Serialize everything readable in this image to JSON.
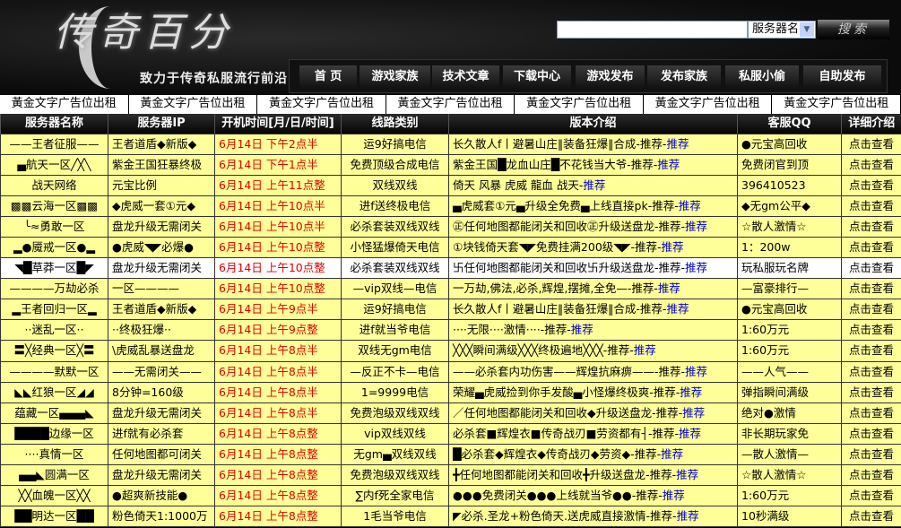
{
  "header": {
    "logo_text": "传奇百分",
    "slogan": "致力于传奇私服流行前沿"
  },
  "search": {
    "value": "",
    "select": "服务器名",
    "button": "搜索"
  },
  "nav": [
    "首 页",
    "游戏家族",
    "技术文章",
    "下载中心",
    "游戏发布",
    "发布家族",
    "私服小偷",
    "自助发布"
  ],
  "ads": [
    "黃金文字广告位出租",
    "黃金文字广告位出租",
    "黃金文字广告位出租",
    "黃金文字广告位出租",
    "黃金文字广告位出租",
    "黃金文字广告位出租",
    "黃金文字广告位出租"
  ],
  "table": {
    "headers": [
      "服务器名称",
      "服务器IP",
      "开机时间[月/日/时间]",
      "线路类别",
      "版本介绍",
      "客服QQ",
      "详细介绍"
    ],
    "recommend": "推荐",
    "rows": [
      {
        "name": "——王者征服——",
        "ip": "王者道盾◆新版◆",
        "time": "6月14日  下午2点半",
        "line": "运9好搞电信",
        "version": "长久散人f丨避暑山庄‖装备狂爆‖合成-推荐-",
        "qq": "●元宝高回收",
        "detail": "点击查看"
      },
      {
        "name": "▄航天一区╱╳╲",
        "ip": "紫金王国狂暴终极",
        "time": "6月14日  下午1点半",
        "line": "免费顶级合成电信",
        "version": "紫金王国█龙血山庄█不花钱当大爷-推荐-",
        "qq": "免费闭官到顶",
        "detail": "点击查看"
      },
      {
        "name": "战天网络",
        "ip": "元宝比例",
        "time": "6月14日  上午11点整",
        "line": "双线双线",
        "version": "倚天 风暴 虎威 龍血 战天-",
        "qq": "396410523",
        "detail": "点击查看"
      },
      {
        "name": "▩▩云海一区▩▩",
        "ip": "◆虎威一套①元◆",
        "time": "6月14日  上午10点半",
        "line": "进f送终极电信",
        "version": "▄虎威套①元▄升级全免费▄上线直接pk-推荐-",
        "qq": "◆无gm公平◆",
        "detail": "点击查看"
      },
      {
        "name": "╰≈勇敢一区",
        "ip": "盘龙升级无需闭关",
        "time": "6月14日  上午10点半",
        "line": "必杀套装双线双线",
        "version": "㊣任何地图都能闭关和回收㊣升级送盘龙-推荐-",
        "qq": "☆散人激情☆",
        "detail": "点击查看"
      },
      {
        "name": "▂●魇戒一区●▂",
        "ip": "●虎威◥◤必爆●",
        "time": "6月14日  上午10点整",
        "line": "小怪猛爆倚天电信",
        "version": "①块钱倚天套◥◤免费挂满200级◥◤-推荐-",
        "qq": "1：200w",
        "detail": "点击查看"
      },
      {
        "name": "◥█草莽一区█◤",
        "ip": "盘龙升级无需闭关",
        "time": "6月14日  上午10点整",
        "line": "必杀套装双线双线",
        "version": "卐任何地图都能闭关和回收卐升级送盘龙-推荐-",
        "qq": "玩私服玩名牌",
        "detail": "点击查看",
        "white": true
      },
      {
        "name": "————万劫必杀",
        "ip": "一区————",
        "time": "6月14日  上午10点整",
        "line": "—vip双线—电信",
        "version": "一万劫,佛法,必杀,辉煌,摆摊,全免—-推荐-",
        "qq": "—富豪排行—",
        "detail": "点击查看"
      },
      {
        "name": "▂王者回归一区▂",
        "ip": "王者道盾◆新版◆",
        "time": "6月14日  上午9点半",
        "line": "运9好搞电信",
        "version": "长久散人f丨避暑山庄‖装备狂爆‖合成-推荐-",
        "qq": "●元宝高回收",
        "detail": "点击查看"
      },
      {
        "name": "··迷乱一区··",
        "ip": "··终极狂爆··",
        "time": "6月14日  上午9点整",
        "line": "进f就当爷电信",
        "version": "····无限····激情····-推荐-",
        "qq": "1:60万元",
        "detail": "点击查看"
      },
      {
        "name": "〓╳经典一区╳〓",
        "ip": "\\虎威乱暴送盘龙",
        "time": "6月14日  上午8点半",
        "line": "双线无gm电信",
        "version": "╳╳╳瞬间满级╳╳╳终极遍地╳╳╳-推荐-",
        "qq": "1:60万元",
        "detail": "点击查看"
      },
      {
        "name": "————默默一区",
        "ip": "——无需闭关——",
        "time": "6月14日  上午8点半",
        "line": "—反正不卡—电信",
        "version": "——必杀套内功伤害——辉煌抗麻痹——-推荐-",
        "qq": "——人气——",
        "detail": "点击查看"
      },
      {
        "name": "◣◣红狼一区◢◢",
        "ip": "8分钟=160级",
        "time": "6月14日  上午8点半",
        "line": "1=9999电信",
        "version": "荣耀▄虎威捡到你手发酸▄小怪爆终极爽-推荐-",
        "qq": "弹指瞬间满级",
        "detail": "点击查看"
      },
      {
        "name": "蕴藏一区▄▄▄◣",
        "ip": "盘龙升级无需闭关",
        "time": "6月14日  上午8点半",
        "line": "免费泡级双线双线",
        "version": "／任何地图都能闭关和回收◆升级送盘龙-推荐-",
        "qq": "绝对●激情",
        "detail": "点击查看"
      },
      {
        "name": "████边缘一区",
        "ip": "进f就有必杀套",
        "time": "6月14日  上午8点整",
        "line": "vip双线双线",
        "version": "必杀套■辉煌衣■传奇战刃■劳资都有┤-推荐-",
        "qq": "非长期玩家免",
        "detail": "点击查看"
      },
      {
        "name": "····真情一区",
        "ip": "任何地图都可闭关",
        "time": "6月14日  上午8点整",
        "line": "无gm▄双线双线",
        "version": "█必杀套◆辉煌衣◆传奇战刃◆劳资◆-推荐-",
        "qq": "—散人激情—",
        "detail": "点击查看"
      },
      {
        "name": "▄▄◣圆满一区",
        "ip": "盘龙升级无需闭关",
        "time": "6月14日  上午8点整",
        "line": "免费泡级双线双线",
        "version": "╋任何地图都能闭关和回收╋升级送盘龙-推荐-",
        "qq": "☆散人激情☆",
        "detail": "点击查看"
      },
      {
        "name": "╳╳血魄一区╳╳",
        "ip": "●超爽新技能●",
        "time": "6月14日  上午8点整",
        "line": "∑内f死全家电信",
        "version": "●●●免费闭关●●●上线就当爷●●-推荐-",
        "qq": "1:60万元",
        "detail": "点击查看"
      },
      {
        "name": "██明达一区██",
        "ip": "粉色倚天1:1000万",
        "time": "6月14日  上午8点整",
        "line": "1毛当爷电信",
        "version": "◤必杀.圣龙+粉色倚天.送虎威直接激情-推荐-",
        "qq": "10秒满级",
        "detail": "点击查看"
      }
    ]
  }
}
